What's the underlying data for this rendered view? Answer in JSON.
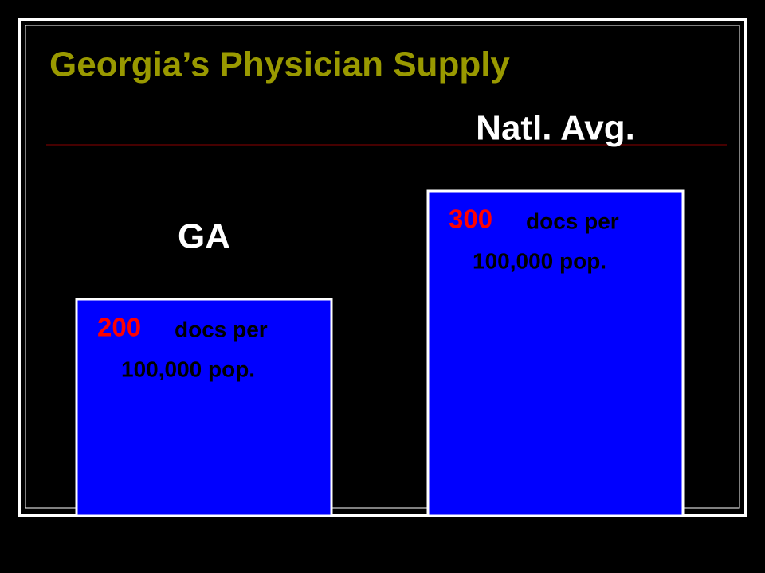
{
  "chart_data": {
    "type": "bar",
    "title": "Georgia’s Physician Supply",
    "categories": [
      "GA",
      "Natl. Avg."
    ],
    "values": [
      200,
      300
    ],
    "value_unit_lines": [
      "docs per",
      "100,000 pop."
    ],
    "color": "#0000ff",
    "value_color": "#ff0000"
  }
}
